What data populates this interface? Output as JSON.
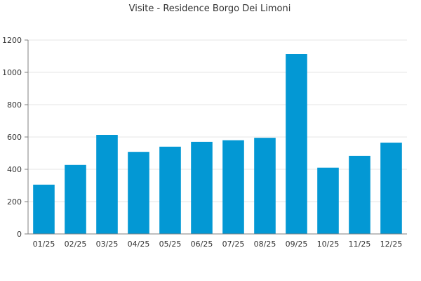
{
  "chart_data": {
    "type": "bar",
    "title": "Visite - Residence Borgo Dei Limoni",
    "xlabel": "",
    "ylabel": "",
    "categories": [
      "01/25",
      "02/25",
      "03/25",
      "04/25",
      "05/25",
      "06/25",
      "07/25",
      "08/25",
      "09/25",
      "10/25",
      "11/25",
      "12/25"
    ],
    "values": [
      305,
      427,
      613,
      508,
      540,
      570,
      580,
      595,
      1113,
      410,
      483,
      565
    ],
    "ylim": [
      0,
      1200
    ],
    "yticks": [
      0,
      200,
      400,
      600,
      800,
      1000,
      1200
    ],
    "grid": true,
    "legend": "none",
    "colors": {
      "bar": "#0398d4",
      "grid": "#e6e6e6",
      "axis": "#7f7f7f",
      "text": "#333333"
    }
  }
}
